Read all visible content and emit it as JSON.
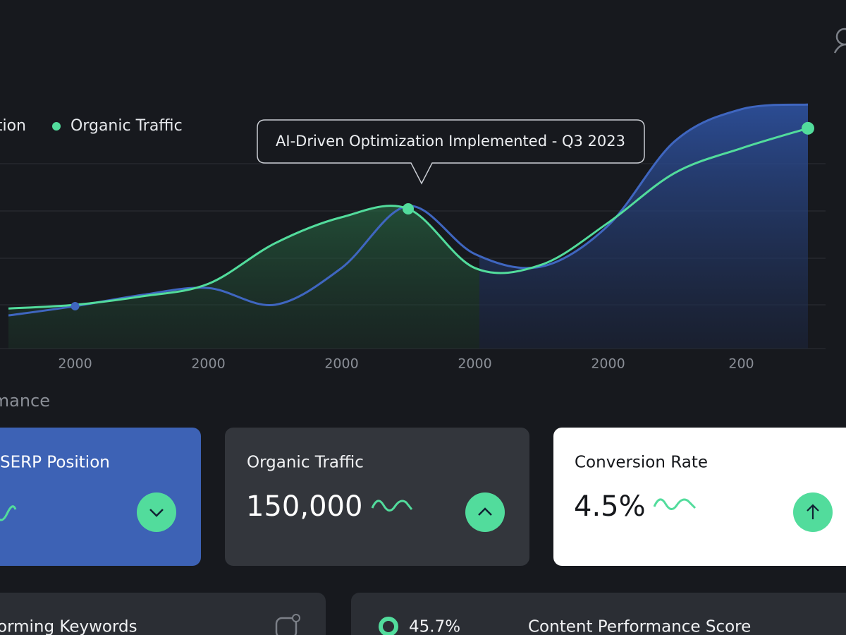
{
  "chart_data": {
    "type": "line",
    "categories": [
      null,
      "2000",
      null,
      "2000",
      null,
      "2000",
      null,
      "2000",
      null,
      "2000",
      null,
      "200",
      null
    ],
    "series": [
      {
        "name": "tion",
        "color": "#3f66c0",
        "values": [
          0.71,
          0.91,
          1.15,
          1.3,
          0.94,
          1.73,
          3.06,
          2.03,
          1.76,
          2.64,
          4.45,
          5.14,
          5.24
        ]
      },
      {
        "name": "Organic Traffic",
        "color": "#52dc9c",
        "values": [
          0.86,
          0.94,
          1.12,
          1.39,
          2.26,
          2.82,
          3.0,
          1.73,
          1.8,
          2.7,
          3.77,
          4.3,
          4.73
        ]
      }
    ],
    "ylim": [
      0,
      5.5
    ],
    "annotation": "AI-Driven Optimization Implemented - Q3 2023"
  },
  "section_title": "mance",
  "cards": [
    {
      "title": "SERP Position"
    },
    {
      "title": "Organic Traffic",
      "value": "150,000"
    },
    {
      "title": "Conversion Rate",
      "value": "4.5%"
    }
  ],
  "bottom_cards": [
    {
      "title": "orming Keywords"
    },
    {
      "value": "45.7%",
      "title": "Content Performance Score"
    }
  ]
}
